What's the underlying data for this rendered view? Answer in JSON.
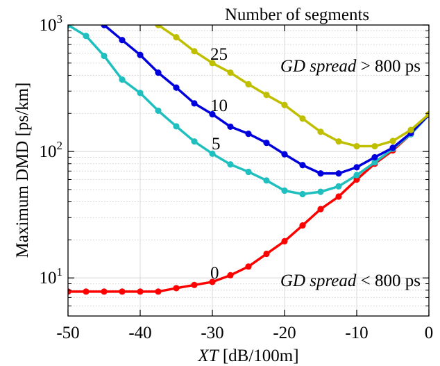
{
  "chart_data": {
    "type": "line",
    "xlabel_italic": "XT",
    "xlabel_rest": " [dB/100m]",
    "ylabel": "Maximum DMD [ps/km]",
    "yscale": "log",
    "xlim": [
      -50,
      0
    ],
    "ylim": [
      5,
      1000
    ],
    "grid": true,
    "x_ticks": [
      -50,
      -40,
      -30,
      -20,
      -10,
      0
    ],
    "x_tick_labels": [
      "-50",
      "-40",
      "-30",
      "-20",
      "-10",
      "0"
    ],
    "y_ticks": [
      {
        "value": 10,
        "base": "10",
        "exp": "1"
      },
      {
        "value": 100,
        "base": "10",
        "exp": "2"
      },
      {
        "value": 1000,
        "base": "10",
        "exp": "3"
      }
    ],
    "legend_title": "Number of segments",
    "annotations": [
      {
        "italic": "GD spread",
        "rest": " > 800 ps",
        "position": "upper-right"
      },
      {
        "italic": "GD spread",
        "rest": " < 800 ps",
        "position": "lower-right"
      }
    ],
    "series": [
      {
        "name": "0",
        "color": "#ff0000",
        "x": [
          -50,
          -47.5,
          -45,
          -42.5,
          -40,
          -37.5,
          -35,
          -32.5,
          -30,
          -27.5,
          -25,
          -22.5,
          -20,
          -17.5,
          -15,
          -12.5,
          -10,
          -7.5,
          -5,
          -2.5,
          0
        ],
        "y": [
          7.8,
          7.8,
          7.8,
          7.8,
          7.8,
          7.8,
          8.3,
          8.8,
          9.3,
          10.5,
          12.3,
          15.5,
          19.5,
          26,
          35,
          44,
          60,
          80,
          102,
          137,
          195
        ]
      },
      {
        "name": "5",
        "color": "#1fbfbf",
        "x": [
          -50,
          -47.5,
          -45,
          -42.5,
          -40,
          -37.5,
          -35,
          -32.5,
          -30,
          -27.5,
          -25,
          -22.5,
          -20,
          -17.5,
          -15,
          -12.5,
          -10,
          -7.5,
          -5,
          -2.5,
          0
        ],
        "y": [
          1000,
          820,
          570,
          370,
          290,
          210,
          158,
          120,
          96,
          79,
          69,
          59,
          49,
          46,
          48,
          53,
          65,
          82,
          105,
          137,
          195
        ]
      },
      {
        "name": "10",
        "color": "#0000dd",
        "x": [
          -45,
          -42.5,
          -40,
          -37.5,
          -35,
          -32.5,
          -30,
          -27.5,
          -25,
          -22.5,
          -20,
          -17.5,
          -15,
          -12.5,
          -10,
          -7.5,
          -5,
          -2.5,
          0
        ],
        "y": [
          1000,
          760,
          580,
          420,
          320,
          240,
          197,
          157,
          138,
          117,
          95,
          78,
          67,
          67,
          75,
          90,
          107,
          140,
          195
        ]
      },
      {
        "name": "25",
        "color": "#bfbf00",
        "x": [
          -37.5,
          -35,
          -32.5,
          -30,
          -27.5,
          -25,
          -22.5,
          -20,
          -17.5,
          -15,
          -12.5,
          -10,
          -7.5,
          -5,
          -2.5,
          0
        ],
        "y": [
          1000,
          800,
          620,
          500,
          420,
          340,
          280,
          233,
          182,
          143,
          120,
          110,
          110,
          121,
          148,
          197
        ]
      }
    ]
  }
}
